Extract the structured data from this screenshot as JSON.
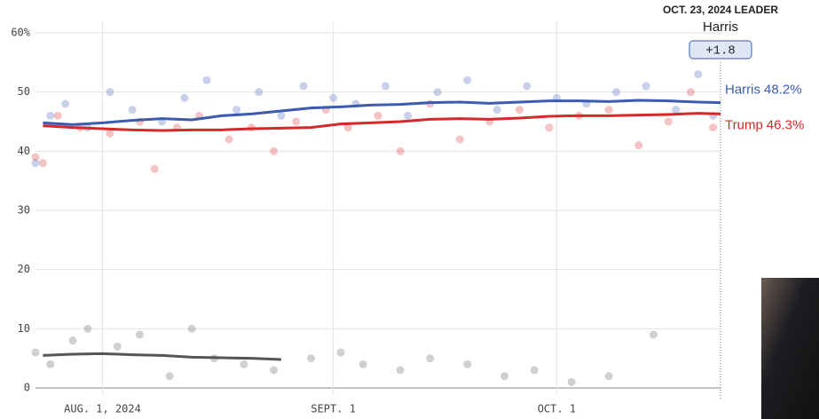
{
  "chart_data": {
    "type": "line",
    "leader": {
      "title": "OCT. 23, 2024 LEADER",
      "name": "Harris",
      "margin": "+1.8"
    },
    "x": [
      "2024-07-24",
      "2024-07-28",
      "2024-08-01",
      "2024-08-05",
      "2024-08-09",
      "2024-08-13",
      "2024-08-17",
      "2024-08-21",
      "2024-08-25",
      "2024-08-29",
      "2024-09-02",
      "2024-09-06",
      "2024-09-10",
      "2024-09-14",
      "2024-09-18",
      "2024-09-22",
      "2024-09-26",
      "2024-09-30",
      "2024-10-04",
      "2024-10-08",
      "2024-10-12",
      "2024-10-16",
      "2024-10-20",
      "2024-10-23"
    ],
    "xlim": [
      "2024-07-23",
      "2024-10-23"
    ],
    "xticks": [
      {
        "value": "2024-08-01",
        "label": "AUG. 1, 2024"
      },
      {
        "value": "2024-09-01",
        "label": "SEPT. 1"
      },
      {
        "value": "2024-10-01",
        "label": "OCT. 1"
      }
    ],
    "ylim": [
      0,
      60
    ],
    "yticks": [
      0,
      10,
      20,
      30,
      40,
      50,
      {
        "value": 60,
        "label": "60%"
      }
    ],
    "grid": true,
    "series": [
      {
        "name": "Harris",
        "value_label": "48.2%",
        "color": "#3a5bb0",
        "values": [
          44.8,
          44.5,
          44.8,
          45.2,
          45.5,
          45.3,
          46.0,
          46.3,
          46.8,
          47.3,
          47.5,
          47.8,
          47.9,
          48.2,
          48.3,
          48.1,
          48.3,
          48.5,
          48.5,
          48.4,
          48.6,
          48.5,
          48.3,
          48.2
        ],
        "polls": {
          "x": [
            "2024-07-23",
            "2024-07-25",
            "2024-07-27",
            "2024-07-30",
            "2024-08-02",
            "2024-08-05",
            "2024-08-09",
            "2024-08-12",
            "2024-08-15",
            "2024-08-19",
            "2024-08-22",
            "2024-08-25",
            "2024-08-28",
            "2024-09-01",
            "2024-09-04",
            "2024-09-08",
            "2024-09-11",
            "2024-09-15",
            "2024-09-19",
            "2024-09-23",
            "2024-09-27",
            "2024-10-01",
            "2024-10-05",
            "2024-10-09",
            "2024-10-13",
            "2024-10-17",
            "2024-10-20",
            "2024-10-22"
          ],
          "values": [
            38,
            46,
            48,
            44,
            50,
            47,
            45,
            49,
            52,
            47,
            50,
            46,
            51,
            49,
            48,
            51,
            46,
            50,
            52,
            47,
            51,
            49,
            48,
            50,
            51,
            47,
            53,
            46
          ]
        }
      },
      {
        "name": "Trump",
        "value_label": "46.3%",
        "color": "#d6282b",
        "values": [
          44.3,
          44.0,
          43.8,
          43.6,
          43.5,
          43.6,
          43.6,
          43.8,
          43.9,
          44.0,
          44.6,
          44.8,
          45.0,
          45.4,
          45.5,
          45.4,
          45.6,
          45.9,
          46.0,
          46.0,
          46.1,
          46.2,
          46.4,
          46.3
        ],
        "polls": {
          "x": [
            "2024-07-23",
            "2024-07-24",
            "2024-07-26",
            "2024-07-29",
            "2024-08-02",
            "2024-08-06",
            "2024-08-08",
            "2024-08-11",
            "2024-08-14",
            "2024-08-18",
            "2024-08-21",
            "2024-08-24",
            "2024-08-27",
            "2024-08-31",
            "2024-09-03",
            "2024-09-07",
            "2024-09-10",
            "2024-09-14",
            "2024-09-18",
            "2024-09-22",
            "2024-09-26",
            "2024-09-30",
            "2024-10-04",
            "2024-10-08",
            "2024-10-12",
            "2024-10-16",
            "2024-10-19",
            "2024-10-22"
          ],
          "values": [
            39,
            38,
            46,
            44,
            43,
            45,
            37,
            44,
            46,
            42,
            44,
            40,
            45,
            47,
            44,
            46,
            40,
            48,
            42,
            45,
            47,
            44,
            46,
            47,
            41,
            45,
            50,
            44
          ]
        }
      },
      {
        "color": "#555555",
        "values": [
          5.5,
          5.7,
          5.8,
          5.6,
          5.5,
          5.2,
          5.1,
          5.0,
          4.8,
          null,
          null,
          null,
          null,
          null,
          null,
          null,
          null,
          null,
          null,
          null,
          null,
          null,
          null,
          null
        ],
        "polls": {
          "x": [
            "2024-07-23",
            "2024-07-25",
            "2024-07-28",
            "2024-07-30",
            "2024-08-03",
            "2024-08-06",
            "2024-08-10",
            "2024-08-13",
            "2024-08-16",
            "2024-08-20",
            "2024-08-24",
            "2024-08-29",
            "2024-09-02",
            "2024-09-05",
            "2024-09-10",
            "2024-09-14",
            "2024-09-19",
            "2024-09-24",
            "2024-09-28",
            "2024-10-03",
            "2024-10-08",
            "2024-10-14"
          ],
          "values": [
            6,
            4,
            8,
            10,
            7,
            9,
            2,
            10,
            5,
            4,
            3,
            5,
            6,
            4,
            3,
            5,
            4,
            2,
            3,
            1,
            2,
            9
          ]
        }
      }
    ]
  }
}
